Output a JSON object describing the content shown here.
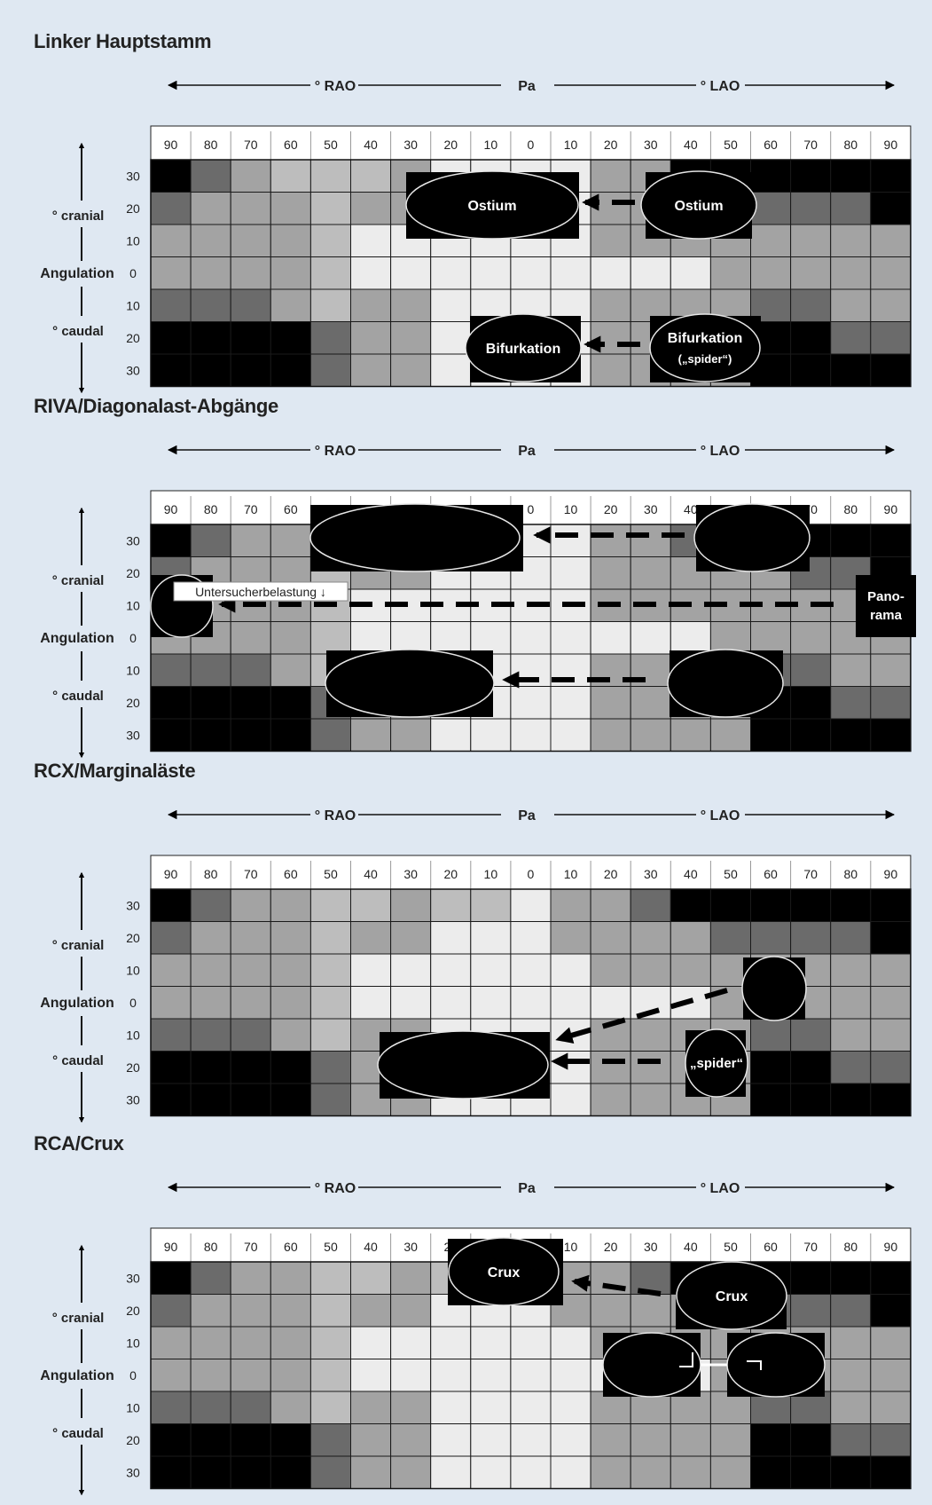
{
  "shades": {
    "B": "#000000",
    "D": "#6b6b6b",
    "M": "#a3a3a3",
    "L": "#bdbdbd",
    "W": "#ececec"
  },
  "col_labels": [
    "90",
    "80",
    "70",
    "60",
    "50",
    "40",
    "30",
    "20",
    "10",
    "0",
    "10",
    "20",
    "30",
    "40",
    "50",
    "60",
    "70",
    "80",
    "90"
  ],
  "row_labels": [
    "30",
    "20",
    "10",
    "0",
    "10",
    "20",
    "30"
  ],
  "header": {
    "rao": "° RAO",
    "pa": "Pa",
    "lao": "° LAO"
  },
  "side": {
    "cranial": "° cranial",
    "angulation": "Angulation",
    "caudal": "° caudal"
  },
  "panels": [
    {
      "id": "linker-hauptstamm",
      "title": "Linker Hauptstamm",
      "grid": [
        "BDMLLLMWWWWMMBBBBBB",
        "DMMMLMMWWWWMMMMDDDB",
        "MMMMLWWWWWWMMMMMMMM",
        "MMMMLWWWWWWWWWMMMMM",
        "DDDMLMMWWWWMMMMDDMM",
        "BBBBDMMWWWWMMMMBBDD",
        "BBBBDMMWWWWMMMMBBBB"
      ],
      "labels": [
        {
          "name": "ostium-rao-label",
          "text": "Ostium"
        },
        {
          "name": "ostium-lao-label",
          "text": "Ostium"
        },
        {
          "name": "bifurkation-pa-label",
          "text": "Bifurkation"
        },
        {
          "name": "bifurkation-lao-label",
          "text": "Bifurkation"
        },
        {
          "name": "spider-sub-label",
          "text": "(„spider“)"
        }
      ]
    },
    {
      "id": "riva-diagonalast",
      "title": "RIVA/Diagonalast-Abgänge",
      "grid": [
        "BDMMLLMWWWWMMDBBBBB",
        "DMMMLMMWWWWMMMMMDDB",
        "MMMMLWWWWWWMMMMMMMM",
        "MMMMLWWWWWWWWWMMMMM",
        "DDDMLMMWWWWMMMMDDMM",
        "BBBBDMMWWWWMMMMBBDD",
        "BBBBDMMWWWWMMMMBBBB"
      ],
      "labels": [
        {
          "name": "untersucherbelastung-label",
          "text": "Untersucherbelastung ↓"
        },
        {
          "name": "panorama-label-line1",
          "text": "Pano-"
        },
        {
          "name": "panorama-label-line2",
          "text": "rama"
        }
      ]
    },
    {
      "id": "rcx-marginalaeste",
      "title": "RCX/Marginaläste",
      "grid": [
        "BDMMLLMLLWMMDBBBBBB",
        "DMMMLMMWWWMMMMDDDDB",
        "MMMMLWWWWWWMMMMMMMM",
        "MMMMLWWWWWWWWWMMMMM",
        "DDDMLMMWWWWMMMMDDMM",
        "BBBBDMMWWWWMMMMBBDD",
        "BBBBDMMWWWWMMMMBBBB"
      ],
      "labels": [
        {
          "name": "spider-label",
          "text": "„spider“"
        }
      ]
    },
    {
      "id": "rca-crux",
      "title": "RCA/Crux",
      "grid": [
        "BDMMLLMLLWMMDBBBBBB",
        "DMMMLMMWWWMMMMDDDDB",
        "MMMMLWWWWWWMMMMMMMM",
        "MMMMLWWWWWWWWWMMMMM",
        "DDDMLMMWWWWMMMMDDMM",
        "BBBBDMMWWWWMMMMBBDD",
        "BBBBDMMWWWWMMMMBBBB"
      ],
      "labels": [
        {
          "name": "crux-pa-label",
          "text": "Crux"
        },
        {
          "name": "crux-lao-label",
          "text": "Crux"
        }
      ]
    }
  ]
}
